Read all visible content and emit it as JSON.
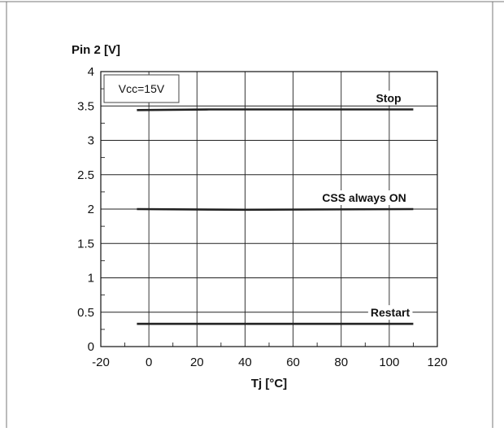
{
  "chart_data": {
    "type": "line",
    "title": "",
    "xlabel": "Tj [°C]",
    "ylabel": "Pin 2 [V]",
    "xlim": [
      -20,
      120
    ],
    "ylim": [
      0,
      4
    ],
    "x_ticks": [
      "-20",
      "0",
      "20",
      "40",
      "60",
      "80",
      "100",
      "120"
    ],
    "y_ticks": [
      "0",
      "0.5",
      "1",
      "1.5",
      "2",
      "2.5",
      "3",
      "3.5",
      "4"
    ],
    "grid": true,
    "annotation": "Vcc=15V",
    "series": [
      {
        "name": "Stop",
        "x": [
          -5,
          25,
          110
        ],
        "y": [
          3.44,
          3.45,
          3.45
        ]
      },
      {
        "name": "CSS always ON",
        "x": [
          -5,
          40,
          110
        ],
        "y": [
          2.0,
          1.99,
          2.0
        ]
      },
      {
        "name": "Restart",
        "x": [
          -5,
          50,
          110
        ],
        "y": [
          0.33,
          0.33,
          0.33
        ]
      }
    ]
  }
}
